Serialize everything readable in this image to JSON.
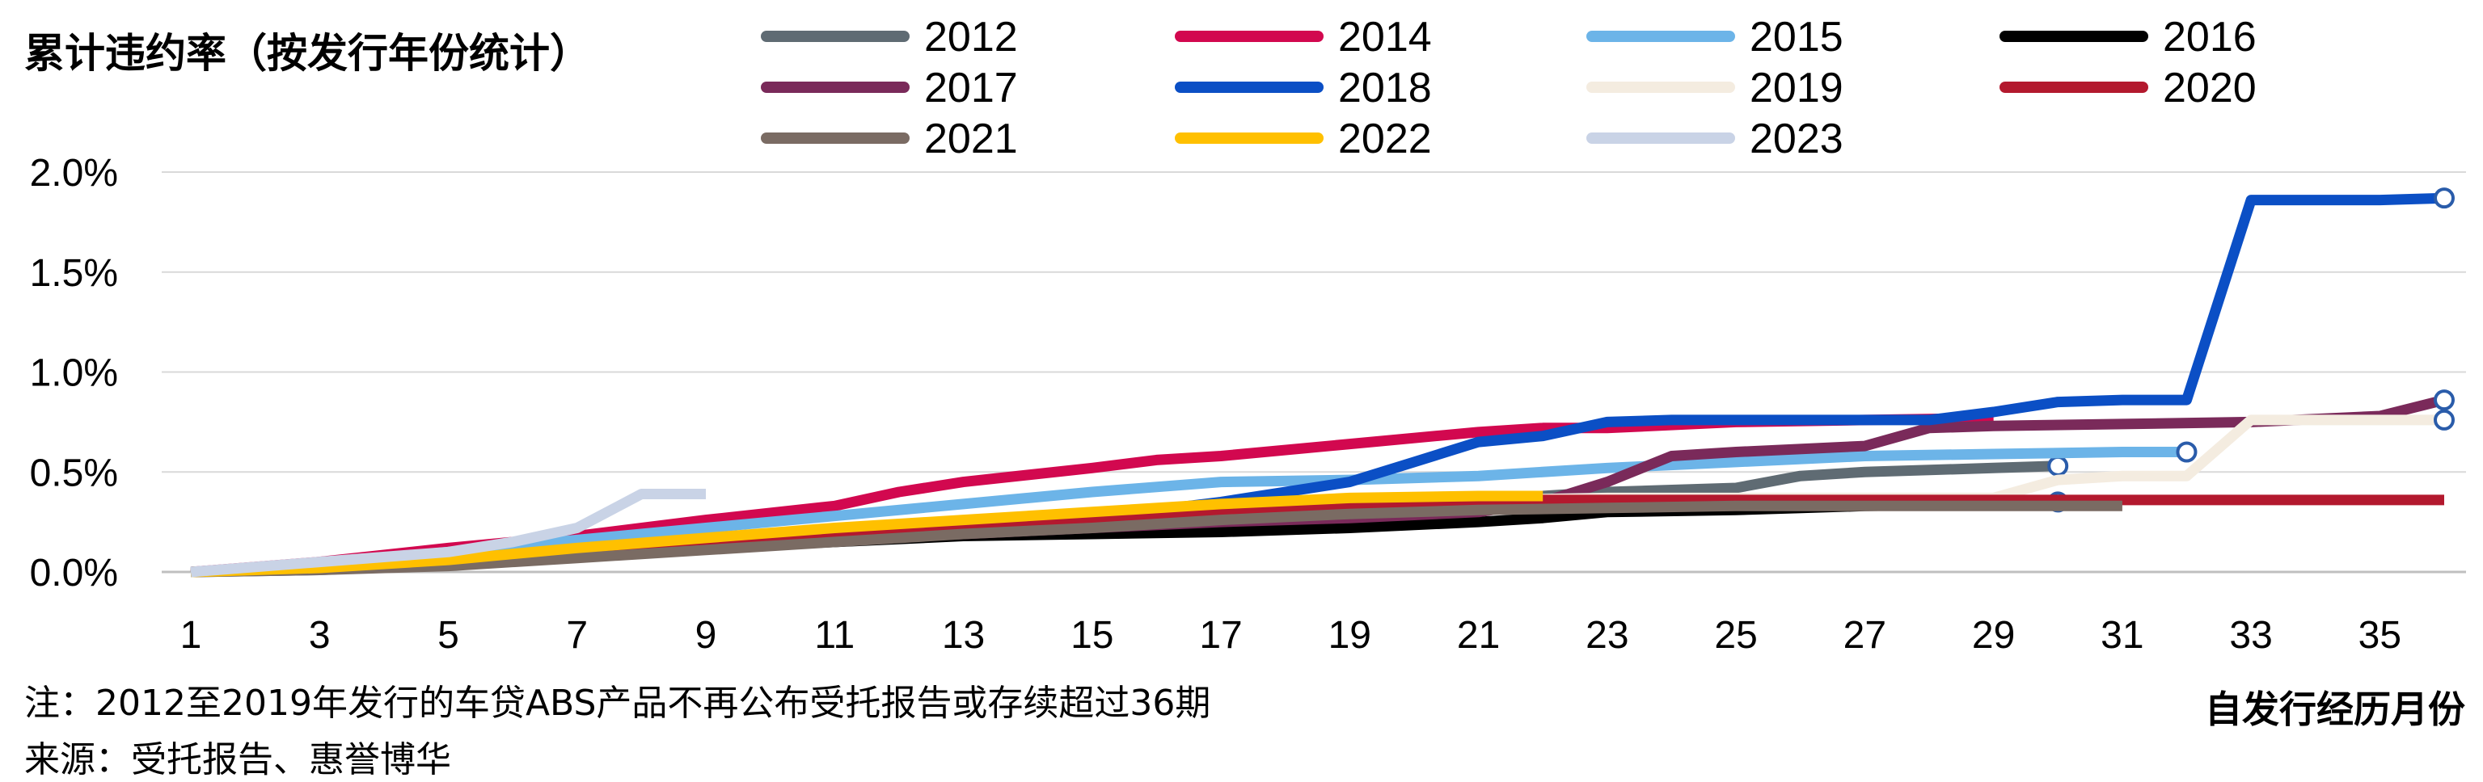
{
  "chart_data": {
    "type": "line",
    "title": "累计违约率（按发行年份统计）",
    "xlabel": "自发行经历月份",
    "ylabel": "",
    "xlim": [
      1,
      36
    ],
    "ylim": [
      0,
      2.0
    ],
    "x_tick_labels": [
      "1",
      "3",
      "5",
      "7",
      "9",
      "11",
      "13",
      "15",
      "17",
      "19",
      "21",
      "23",
      "25",
      "27",
      "29",
      "31",
      "33",
      "35"
    ],
    "y_tick_labels": [
      "0.0%",
      "0.5%",
      "1.0%",
      "1.5%",
      "2.0%"
    ],
    "grid": "horizontal",
    "legend_position": "top",
    "series": [
      {
        "name": "2012",
        "color": "#5f6b73",
        "x": [
          1,
          3,
          5,
          7,
          9,
          11,
          13,
          15,
          17,
          19,
          21,
          23,
          25,
          26,
          27,
          29,
          30
        ],
        "y": [
          0,
          0.01,
          0.04,
          0.09,
          0.14,
          0.18,
          0.21,
          0.25,
          0.28,
          0.32,
          0.36,
          0.4,
          0.42,
          0.48,
          0.5,
          0.52,
          0.53
        ],
        "end_marker": true
      },
      {
        "name": "2014",
        "color": "#d2084f",
        "x": [
          1,
          3,
          5,
          7,
          9,
          11,
          12,
          13,
          15,
          16,
          17,
          19,
          21,
          22,
          23,
          25,
          27,
          29
        ],
        "y": [
          0,
          0.05,
          0.12,
          0.18,
          0.26,
          0.33,
          0.4,
          0.45,
          0.52,
          0.56,
          0.58,
          0.64,
          0.7,
          0.72,
          0.72,
          0.75,
          0.76,
          0.77
        ],
        "end_marker": false
      },
      {
        "name": "2015",
        "color": "#6cb4e8",
        "x": [
          1,
          3,
          5,
          7,
          9,
          11,
          13,
          15,
          17,
          19,
          21,
          23,
          25,
          27,
          29,
          31,
          32
        ],
        "y": [
          0,
          0.04,
          0.1,
          0.16,
          0.22,
          0.28,
          0.34,
          0.4,
          0.45,
          0.46,
          0.48,
          0.52,
          0.55,
          0.58,
          0.59,
          0.6,
          0.6
        ],
        "end_marker": true
      },
      {
        "name": "2016",
        "color": "#000000",
        "x": [
          1,
          3,
          5,
          7,
          9,
          11,
          13,
          15,
          17,
          19,
          21,
          22,
          23,
          25,
          27,
          29,
          30
        ],
        "y": [
          0,
          0.02,
          0.05,
          0.09,
          0.12,
          0.15,
          0.18,
          0.19,
          0.2,
          0.22,
          0.25,
          0.27,
          0.3,
          0.31,
          0.33,
          0.34,
          0.35
        ],
        "end_marker": true
      },
      {
        "name": "2017",
        "color": "#7a2a5a",
        "x": [
          1,
          3,
          5,
          7,
          9,
          11,
          13,
          15,
          17,
          19,
          21,
          22,
          23,
          24,
          25,
          27,
          28,
          29,
          31,
          33,
          35,
          36
        ],
        "y": [
          0,
          0.02,
          0.05,
          0.09,
          0.13,
          0.16,
          0.19,
          0.22,
          0.25,
          0.27,
          0.3,
          0.35,
          0.45,
          0.58,
          0.6,
          0.63,
          0.72,
          0.73,
          0.74,
          0.75,
          0.78,
          0.86
        ],
        "end_marker": true
      },
      {
        "name": "2018",
        "color": "#0b4fc5",
        "x": [
          1,
          3,
          5,
          7,
          9,
          11,
          13,
          15,
          17,
          18,
          19,
          20,
          21,
          22,
          23,
          24,
          25,
          27,
          28,
          29,
          30,
          31,
          32,
          33,
          34,
          35,
          36
        ],
        "y": [
          0,
          0.02,
          0.05,
          0.09,
          0.13,
          0.17,
          0.22,
          0.27,
          0.35,
          0.4,
          0.45,
          0.55,
          0.65,
          0.68,
          0.75,
          0.76,
          0.76,
          0.76,
          0.76,
          0.8,
          0.85,
          0.86,
          0.86,
          1.86,
          1.86,
          1.86,
          1.87
        ],
        "end_marker": true
      },
      {
        "name": "2019",
        "color": "#f4ece0",
        "x": [
          1,
          3,
          5,
          7,
          9,
          11,
          13,
          15,
          17,
          19,
          21,
          23,
          25,
          27,
          29,
          30,
          31,
          32,
          33,
          35,
          36
        ],
        "y": [
          0,
          0.02,
          0.05,
          0.09,
          0.13,
          0.17,
          0.21,
          0.25,
          0.3,
          0.34,
          0.36,
          0.37,
          0.37,
          0.37,
          0.37,
          0.46,
          0.48,
          0.48,
          0.76,
          0.76,
          0.76
        ],
        "end_marker": true
      },
      {
        "name": "2020",
        "color": "#b3192e",
        "x": [
          1,
          3,
          5,
          7,
          9,
          11,
          13,
          15,
          17,
          19,
          21,
          22,
          23,
          25,
          27,
          29,
          31,
          33,
          35,
          36
        ],
        "y": [
          0,
          0.02,
          0.05,
          0.09,
          0.13,
          0.17,
          0.21,
          0.25,
          0.29,
          0.32,
          0.35,
          0.36,
          0.36,
          0.36,
          0.36,
          0.36,
          0.36,
          0.36,
          0.36,
          0.36
        ],
        "end_marker": false
      },
      {
        "name": "2021",
        "color": "#7a6b63",
        "x": [
          1,
          3,
          5,
          7,
          9,
          11,
          13,
          15,
          17,
          19,
          21,
          23,
          25,
          27,
          29,
          31
        ],
        "y": [
          0,
          0.01,
          0.03,
          0.07,
          0.11,
          0.15,
          0.19,
          0.22,
          0.26,
          0.29,
          0.31,
          0.32,
          0.33,
          0.33,
          0.33,
          0.33
        ],
        "end_marker": false
      },
      {
        "name": "2022",
        "color": "#ffc000",
        "x": [
          1,
          3,
          5,
          7,
          9,
          11,
          13,
          15,
          17,
          19,
          21,
          22
        ],
        "y": [
          0,
          0.02,
          0.06,
          0.12,
          0.17,
          0.22,
          0.26,
          0.3,
          0.34,
          0.37,
          0.38,
          0.38
        ],
        "end_marker": false
      },
      {
        "name": "2023",
        "color": "#c9d3e6",
        "x": [
          1,
          3,
          5,
          6,
          7,
          8,
          9
        ],
        "y": [
          0,
          0.05,
          0.1,
          0.15,
          0.22,
          0.39,
          0.39
        ],
        "end_marker": false
      }
    ]
  },
  "notes": {
    "note1": "注：2012至2019年发行的车贷ABS产品不再公布受托报告或存续超过36期",
    "source": "来源：受托报告、惠誉博华"
  }
}
